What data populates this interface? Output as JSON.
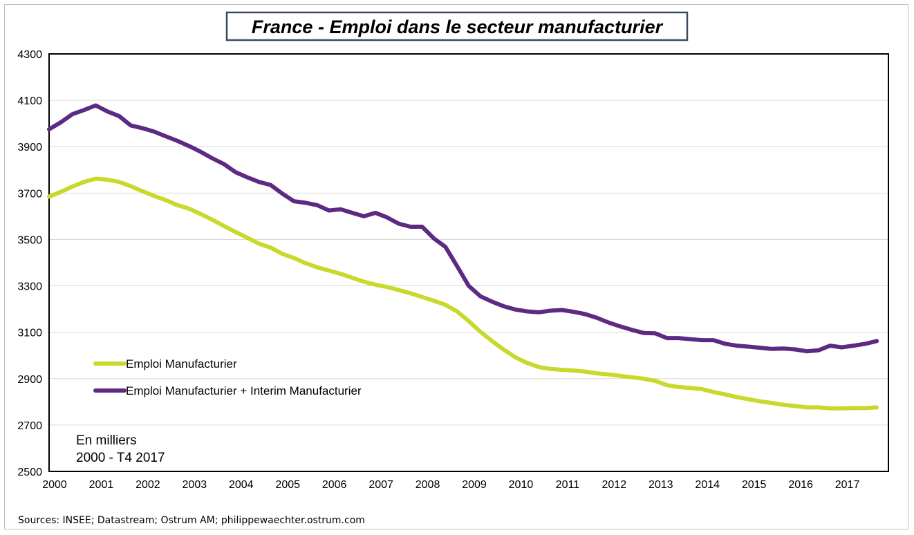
{
  "chart_data": {
    "type": "line",
    "title": "France - Emploi dans le secteur manufacturier",
    "xlabel": "",
    "ylabel": "",
    "x_ticks": [
      "2000",
      "2001",
      "2002",
      "2003",
      "2004",
      "2005",
      "2006",
      "2007",
      "2008",
      "2009",
      "2010",
      "2011",
      "2012",
      "2013",
      "2014",
      "2015",
      "2016",
      "2017"
    ],
    "y_ticks": [
      "2500",
      "2700",
      "2900",
      "3100",
      "3300",
      "3500",
      "3700",
      "3900",
      "4100",
      "4300"
    ],
    "xlim": [
      2000.0,
      2018.0
    ],
    "ylim": [
      2500,
      4300
    ],
    "grid": true,
    "legend_position": "lower-left",
    "annotations": [
      "En milliers",
      "2000 - T4 2017"
    ],
    "source": "Sources: INSEE; Datastream; Ostrum AM; philippewaechter.ostrum.com",
    "x": [
      2000.0,
      2000.25,
      2000.5,
      2000.75,
      2001.0,
      2001.25,
      2001.5,
      2001.75,
      2002.0,
      2002.25,
      2002.5,
      2002.75,
      2003.0,
      2003.25,
      2003.5,
      2003.75,
      2004.0,
      2004.25,
      2004.5,
      2004.75,
      2005.0,
      2005.25,
      2005.5,
      2005.75,
      2006.0,
      2006.25,
      2006.5,
      2006.75,
      2007.0,
      2007.25,
      2007.5,
      2007.75,
      2008.0,
      2008.25,
      2008.5,
      2008.75,
      2009.0,
      2009.25,
      2009.5,
      2009.75,
      2010.0,
      2010.25,
      2010.5,
      2010.75,
      2011.0,
      2011.25,
      2011.5,
      2011.75,
      2012.0,
      2012.25,
      2012.5,
      2012.75,
      2013.0,
      2013.25,
      2013.5,
      2013.75,
      2014.0,
      2014.25,
      2014.5,
      2014.75,
      2015.0,
      2015.25,
      2015.5,
      2015.75,
      2016.0,
      2016.25,
      2016.5,
      2016.75,
      2017.0,
      2017.25,
      2017.5,
      2017.75
    ],
    "series": [
      {
        "name": "Emploi Manufacturier",
        "color": "#c8d92b",
        "values": [
          3685,
          3705,
          3728,
          3748,
          3762,
          3758,
          3748,
          3730,
          3708,
          3688,
          3670,
          3648,
          3633,
          3610,
          3585,
          3558,
          3532,
          3508,
          3482,
          3465,
          3438,
          3420,
          3398,
          3380,
          3366,
          3352,
          3335,
          3318,
          3305,
          3295,
          3282,
          3268,
          3252,
          3236,
          3218,
          3190,
          3148,
          3102,
          3062,
          3025,
          2992,
          2968,
          2950,
          2942,
          2938,
          2935,
          2930,
          2923,
          2918,
          2912,
          2906,
          2900,
          2890,
          2872,
          2864,
          2860,
          2855,
          2842,
          2832,
          2820,
          2811,
          2802,
          2795,
          2787,
          2782,
          2776,
          2776,
          2772,
          2772,
          2773,
          2773,
          2776
        ]
      },
      {
        "name": "Emploi Manufacturier + Interim Manufacturier",
        "color": "#5c2a83",
        "values": [
          3975,
          4005,
          4040,
          4058,
          4078,
          4052,
          4032,
          3992,
          3980,
          3965,
          3945,
          3925,
          3903,
          3878,
          3850,
          3825,
          3790,
          3768,
          3748,
          3735,
          3698,
          3665,
          3658,
          3648,
          3625,
          3630,
          3615,
          3600,
          3615,
          3595,
          3568,
          3555,
          3555,
          3505,
          3468,
          3385,
          3300,
          3255,
          3232,
          3212,
          3198,
          3190,
          3186,
          3193,
          3196,
          3188,
          3178,
          3162,
          3142,
          3125,
          3110,
          3097,
          3095,
          3075,
          3075,
          3070,
          3066,
          3066,
          3050,
          3042,
          3038,
          3033,
          3028,
          3030,
          3026,
          3018,
          3022,
          3042,
          3035,
          3042,
          3050,
          3062
        ]
      }
    ]
  }
}
